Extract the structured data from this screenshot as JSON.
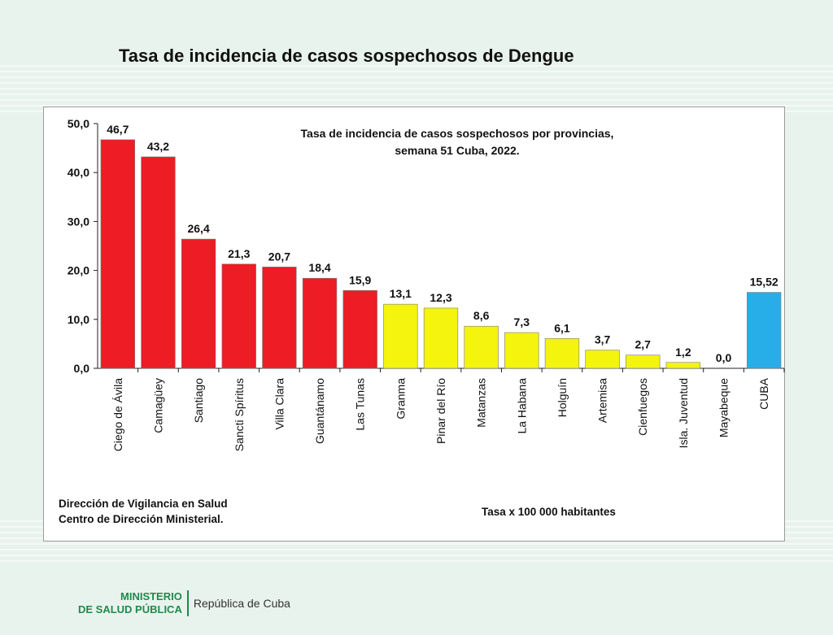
{
  "slide": {
    "title": "Tasa de incidencia de casos sospechosos de Dengue"
  },
  "footer": {
    "ministry_line1": "MINISTERIO",
    "ministry_line2": "DE SALUD PÚBLICA",
    "country": "República de Cuba"
  },
  "colors": {
    "red": "#ee1c24",
    "yellow": "#f4f40e",
    "blue": "#27aee8"
  },
  "chart_data": {
    "type": "bar",
    "title_line1": "Tasa de incidencia de casos sospechosos por provincias,",
    "title_line2": "semana 51 Cuba, 2022.",
    "xlabel": "",
    "ylabel": "",
    "ylim": [
      0,
      50
    ],
    "yticks": [
      "0,0",
      "10,0",
      "20,0",
      "30,0",
      "40,0",
      "50,0"
    ],
    "ytick_values": [
      0,
      10,
      20,
      30,
      40,
      50
    ],
    "categories": [
      "Ciego de Ávila",
      "Camagüey",
      "Santiago",
      "Sancti Spíritus",
      "Villa Clara",
      "Guantánamo",
      "Las Tunas",
      "Granma",
      "Pinar del Río",
      "Matanzas",
      "La Habana",
      "Holguín",
      "Artemisa",
      "Cienfuegos",
      "Isla. Juventud",
      "Mayabeque",
      "CUBA"
    ],
    "values": [
      46.7,
      43.2,
      26.4,
      21.3,
      20.7,
      18.4,
      15.9,
      13.1,
      12.3,
      8.6,
      7.3,
      6.1,
      3.7,
      2.7,
      1.2,
      0.0,
      15.52
    ],
    "value_labels": [
      "46,7",
      "43,2",
      "26,4",
      "21,3",
      "20,7",
      "18,4",
      "15,9",
      "13,1",
      "12,3",
      "8,6",
      "7,3",
      "6,1",
      "3,7",
      "2,7",
      "1,2",
      "0,0",
      "15,52"
    ],
    "bar_colors": [
      "red",
      "red",
      "red",
      "red",
      "red",
      "red",
      "red",
      "yellow",
      "yellow",
      "yellow",
      "yellow",
      "yellow",
      "yellow",
      "yellow",
      "yellow",
      "yellow",
      "blue"
    ],
    "grid": false,
    "legend": "none",
    "source_line1": "Dirección de Vigilancia en Salud",
    "source_line2": "Centro de Dirección Ministerial.",
    "unit_note": "Tasa x 100 000 habitantes"
  }
}
